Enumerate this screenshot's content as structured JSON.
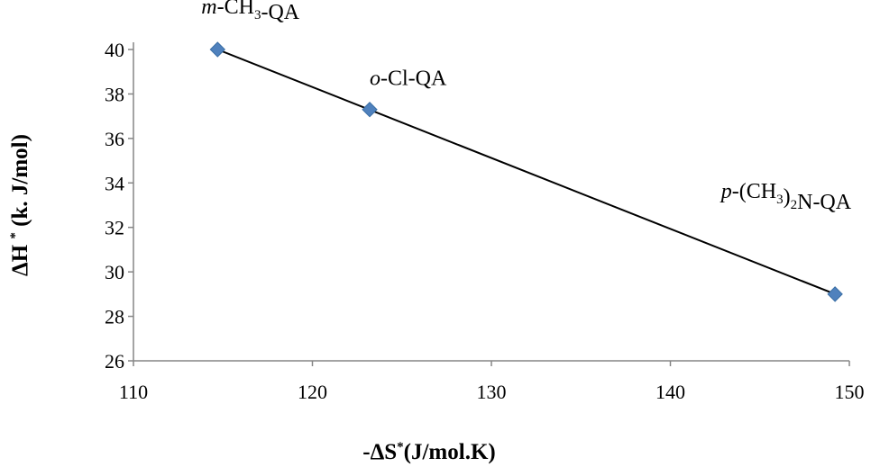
{
  "chart_data": {
    "type": "scatter",
    "xlabel": "-ΔS*(J/mol.K)",
    "ylabel": "ΔH *(k. J/mol)",
    "xlim": [
      110,
      150
    ],
    "ylim": [
      26,
      40
    ],
    "xticks": [
      110,
      120,
      130,
      140,
      150
    ],
    "yticks": [
      26,
      28,
      30,
      32,
      34,
      36,
      38,
      40
    ],
    "points": [
      {
        "x": 114.7,
        "y": 40.0,
        "label_prefix": "m",
        "label_rest": "-CH3-QA"
      },
      {
        "x": 123.2,
        "y": 37.3,
        "label_prefix": "o",
        "label_rest": "-Cl-QA"
      },
      {
        "x": 149.2,
        "y": 29.0,
        "label_prefix": "p",
        "label_rest": "-(CH3)2N-QA"
      }
    ],
    "trendline": {
      "x": [
        114.7,
        149.2
      ],
      "y": [
        40.0,
        29.0
      ]
    },
    "marker_color": "#4f81bd",
    "grid": false,
    "legend": "none"
  }
}
